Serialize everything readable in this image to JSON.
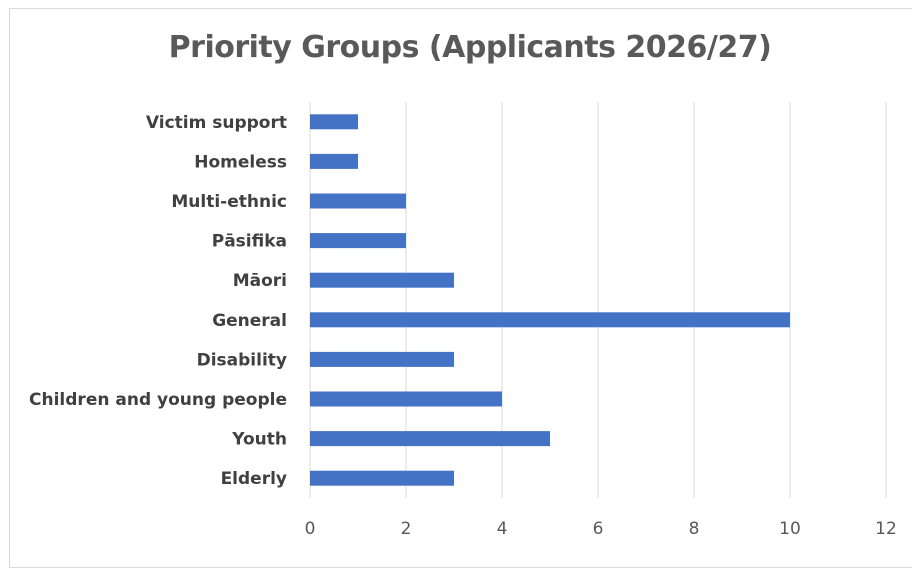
{
  "chart_data": {
    "type": "bar",
    "orientation": "horizontal",
    "title": "Priority Groups (Applicants 2026/27)",
    "categories": [
      "Victim support",
      "Homeless",
      "Multi-ethnic",
      "Pāsifika",
      "Māori",
      "General",
      "Disability",
      "Children and young people",
      "Youth",
      "Elderly"
    ],
    "values": [
      1,
      1,
      2,
      2,
      3,
      10,
      3,
      4,
      5,
      3
    ],
    "xlim": [
      0,
      12
    ],
    "xticks": [
      0,
      2,
      4,
      6,
      8,
      10,
      12
    ],
    "xlabel": "",
    "ylabel": "",
    "grid": "vertical",
    "legend": "none",
    "bar_color": "#4472c4"
  }
}
